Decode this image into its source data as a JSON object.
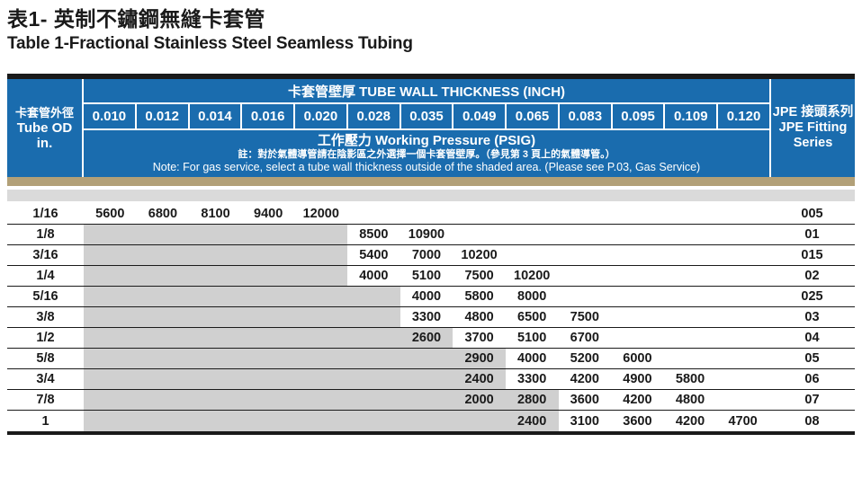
{
  "title": {
    "zh": "表1- 英制不鏽鋼無縫卡套管",
    "en": "Table 1-Fractional Stainless Steel Seamless Tubing"
  },
  "header": {
    "od_label_zh": "卡套管外徑",
    "od_label_en": "Tube OD",
    "od_unit": "in.",
    "thickness_title": "卡套管壁厚  TUBE WALL THICKNESS (INCH)",
    "pressure_title": "工作壓力 Working Pressure (PSIG)",
    "note_zh": "註：對於氣體導管請在陰影區之外選擇一個卡套管壁厚。（參見第 3 頁上的氣體導管。）",
    "note_en": "Note: For gas service, select a tube wall thickness outside of the shaded area. (Please see P.03, Gas Service)",
    "series_zh": "JPE 接頭系列",
    "series_en1": "JPE Fitting",
    "series_en2": "Series"
  },
  "colors": {
    "header_blue": "#1a6cae",
    "tan_band": "#b2a078",
    "gray_band": "#dadada",
    "shaded_area": "#d0d0d0",
    "border_black": "#1a1a1a"
  },
  "chart_data": {
    "type": "table",
    "title": "Table 1-Fractional Stainless Steel Seamless Tubing",
    "thicknesses": [
      "0.010",
      "0.012",
      "0.014",
      "0.016",
      "0.020",
      "0.028",
      "0.035",
      "0.049",
      "0.065",
      "0.083",
      "0.095",
      "0.109",
      "0.120"
    ],
    "pressure_unit": "PSIG",
    "rows": [
      {
        "od": "1/16",
        "shaded_until": -1,
        "series": "005",
        "values": [
          "5600",
          "6800",
          "8100",
          "9400",
          "12000",
          "",
          "",
          "",
          "",
          "",
          "",
          "",
          ""
        ]
      },
      {
        "od": "1/8",
        "shaded_until": 4,
        "series": "01",
        "values": [
          "",
          "",
          "",
          "",
          "",
          "8500",
          "10900",
          "",
          "",
          "",
          "",
          "",
          ""
        ]
      },
      {
        "od": "3/16",
        "shaded_until": 4,
        "series": "015",
        "values": [
          "",
          "",
          "",
          "",
          "",
          "5400",
          "7000",
          "10200",
          "",
          "",
          "",
          "",
          ""
        ]
      },
      {
        "od": "1/4",
        "shaded_until": 4,
        "series": "02",
        "values": [
          "",
          "",
          "",
          "",
          "",
          "4000",
          "5100",
          "7500",
          "10200",
          "",
          "",
          "",
          ""
        ]
      },
      {
        "od": "5/16",
        "shaded_until": 5,
        "series": "025",
        "values": [
          "",
          "",
          "",
          "",
          "",
          "",
          "4000",
          "5800",
          "8000",
          "",
          "",
          "",
          ""
        ]
      },
      {
        "od": "3/8",
        "shaded_until": 5,
        "series": "03",
        "values": [
          "",
          "",
          "",
          "",
          "",
          "",
          "3300",
          "4800",
          "6500",
          "7500",
          "",
          "",
          ""
        ]
      },
      {
        "od": "1/2",
        "shaded_until": 6,
        "series": "04",
        "values": [
          "",
          "",
          "",
          "",
          "",
          "",
          "2600",
          "3700",
          "5100",
          "6700",
          "",
          "",
          ""
        ]
      },
      {
        "od": "5/8",
        "shaded_until": 7,
        "series": "05",
        "values": [
          "",
          "",
          "",
          "",
          "",
          "",
          "",
          "2900",
          "4000",
          "5200",
          "6000",
          "",
          ""
        ]
      },
      {
        "od": "3/4",
        "shaded_until": 7,
        "series": "06",
        "values": [
          "",
          "",
          "",
          "",
          "",
          "",
          "",
          "2400",
          "3300",
          "4200",
          "4900",
          "5800",
          ""
        ]
      },
      {
        "od": "7/8",
        "shaded_until": 8,
        "series": "07",
        "values": [
          "",
          "",
          "",
          "",
          "",
          "",
          "",
          "2000",
          "2800",
          "3600",
          "4200",
          "4800",
          ""
        ]
      },
      {
        "od": "1",
        "shaded_until": 8,
        "series": "08",
        "values": [
          "",
          "",
          "",
          "",
          "",
          "",
          "",
          "",
          "2400",
          "3100",
          "3600",
          "4200",
          "4700"
        ]
      }
    ]
  }
}
